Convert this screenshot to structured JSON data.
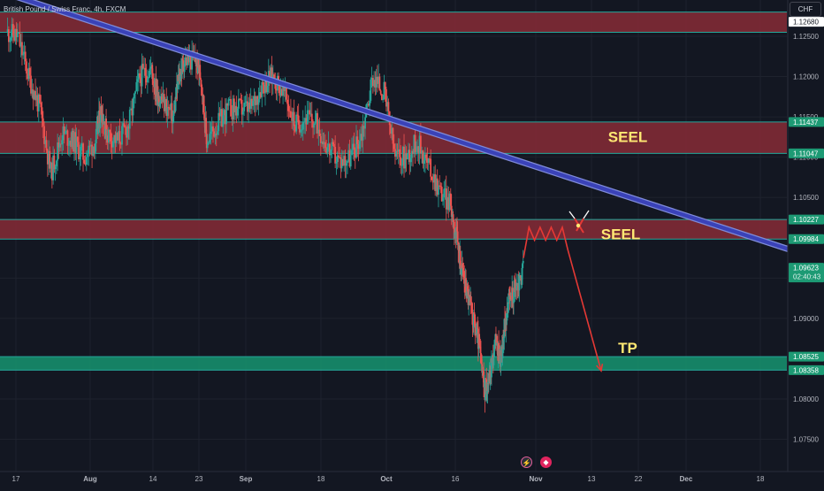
{
  "header": {
    "symbol_title": "British Pound / Swiss Franc, 4h, FXCM",
    "currency": "CHF"
  },
  "icons": {
    "bolt": "lightning-icon",
    "flag": "event-flag-icon",
    "bolt_glyph": "⚡",
    "flag_glyph": "◆"
  },
  "colors": {
    "background": "#131722",
    "resistance_zone": "#7e2a35",
    "resistance_border": "#26a69a",
    "target_zone": "#169470",
    "bull_candle": "#26a69a",
    "bear_candle": "#ef5350",
    "trendline": "#3a42b8",
    "trendline_edge": "#7f8bd8",
    "projection": "#e53935",
    "annotation_text": "#ffe873"
  },
  "chart_data": {
    "type": "candlestick",
    "title": "British Pound / Swiss Franc, 4h, FXCM",
    "ylabel": "CHF",
    "ylim": [
      1.071,
      1.1295
    ],
    "y_ticks": [
      1.125,
      1.12,
      1.115,
      1.11,
      1.105,
      1.1,
      1.095,
      1.09,
      1.085,
      1.08,
      1.075
    ],
    "y_tick_labels": [
      "1.12500",
      "1.12000",
      "1.11500",
      "1.11000",
      "1.10500",
      "1.10000",
      "1.09500",
      "1.09000",
      "1.08500",
      "1.08000",
      "1.07500"
    ],
    "x_tick_labels": [
      "17",
      "Aug",
      "14",
      "23",
      "Sep",
      "18",
      "Oct",
      "16",
      "Nov",
      "13",
      "22",
      "Dec",
      "18"
    ],
    "zones": [
      {
        "type": "resistance",
        "top": 1.128,
        "bottom": 1.1255
      },
      {
        "type": "resistance",
        "top": 1.11437,
        "bottom": 1.11047,
        "label": "SEEL"
      },
      {
        "type": "resistance",
        "top": 1.10227,
        "bottom": 1.09984,
        "label": "SEEL"
      },
      {
        "type": "target",
        "top": 1.08525,
        "bottom": 1.08358,
        "label": "TP"
      }
    ],
    "price_labels": [
      {
        "value": 1.1268,
        "text": "1.12680",
        "style": "white"
      },
      {
        "value": 1.11437,
        "text": "1.11437",
        "style": "green"
      },
      {
        "value": 1.11047,
        "text": "1.11047",
        "style": "green"
      },
      {
        "value": 1.10227,
        "text": "1.10227",
        "style": "green"
      },
      {
        "value": 1.09984,
        "text": "1.09984",
        "style": "green"
      },
      {
        "value": 1.09623,
        "text": "1.09623",
        "style": "green",
        "sub": "02:40:43"
      },
      {
        "value": 1.08525,
        "text": "1.08525",
        "style": "green"
      },
      {
        "value": 1.08358,
        "text": "1.08358",
        "style": "green"
      }
    ],
    "annotations": [
      "SEEL",
      "SEEL",
      "TP"
    ],
    "candle_path": [
      [
        0,
        1.1255
      ],
      [
        2,
        1.125
      ],
      [
        4,
        1.12
      ],
      [
        6,
        1.116
      ],
      [
        8,
        1.108
      ],
      [
        10,
        1.113
      ],
      [
        12,
        1.112
      ],
      [
        14,
        1.11
      ],
      [
        16,
        1.112
      ],
      [
        17,
        1.116
      ],
      [
        18,
        1.113
      ],
      [
        20,
        1.112
      ],
      [
        22,
        1.114
      ],
      [
        24,
        1.12
      ],
      [
        26,
        1.121
      ],
      [
        27,
        1.118
      ],
      [
        28,
        1.117
      ],
      [
        30,
        1.115
      ],
      [
        31,
        1.12
      ],
      [
        32,
        1.122
      ],
      [
        34,
        1.122
      ],
      [
        35,
        1.12
      ],
      [
        36,
        1.112
      ],
      [
        38,
        1.114
      ],
      [
        40,
        1.116
      ],
      [
        42,
        1.116
      ],
      [
        44,
        1.116
      ],
      [
        46,
        1.119
      ],
      [
        48,
        1.12
      ],
      [
        50,
        1.118
      ],
      [
        52,
        1.114
      ],
      [
        54,
        1.115
      ],
      [
        56,
        1.114
      ],
      [
        58,
        1.111
      ],
      [
        60,
        1.1095
      ],
      [
        62,
        1.11
      ],
      [
        64,
        1.113
      ],
      [
        66,
        1.12
      ],
      [
        68,
        1.118
      ],
      [
        70,
        1.11
      ],
      [
        72,
        1.11
      ],
      [
        74,
        1.112
      ],
      [
        76,
        1.109
      ],
      [
        78,
        1.106
      ],
      [
        80,
        1.104
      ],
      [
        81,
        1.1
      ],
      [
        82,
        1.096
      ],
      [
        83,
        1.093
      ],
      [
        84,
        1.09
      ],
      [
        85,
        1.087
      ],
      [
        86,
        1.081
      ],
      [
        87,
        1.083
      ],
      [
        88,
        1.087
      ],
      [
        89,
        1.085
      ],
      [
        90,
        1.091
      ],
      [
        91,
        1.093
      ],
      [
        92,
        1.094
      ],
      [
        93,
        1.096
      ]
    ],
    "trendline": [
      [
        -1,
        1.1305
      ],
      [
        150,
        1.0965
      ]
    ],
    "projection": [
      [
        93,
        1.0975
      ],
      [
        94,
        1.1013
      ],
      [
        95,
        1.0997
      ],
      [
        96,
        1.1013
      ],
      [
        97,
        1.0997
      ],
      [
        98,
        1.1013
      ],
      [
        99,
        1.0997
      ],
      [
        100,
        1.1013
      ],
      [
        101,
        1.0985
      ],
      [
        107,
        1.0835
      ]
    ]
  }
}
